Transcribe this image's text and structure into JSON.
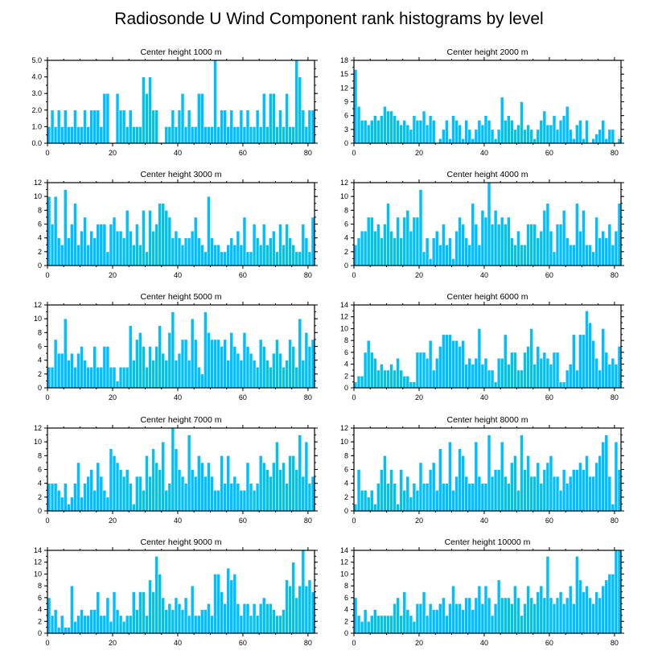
{
  "title": "Radiosonde U Wind Component rank histograms by level",
  "colors": {
    "bar": "#00bfff",
    "axis": "#000000",
    "background": "#ffffff"
  },
  "chart_data": [
    {
      "type": "bar",
      "title": "Center height 1000 m",
      "xlim": [
        0,
        82
      ],
      "ylim": [
        0,
        5
      ],
      "x_ticks": [
        "0",
        "20",
        "40",
        "60",
        "80"
      ],
      "y_ticks": [
        "0.0",
        "1.0",
        "2.0",
        "3.0",
        "4.0",
        "5.0"
      ],
      "values": [
        1,
        2,
        1,
        2,
        1,
        2,
        1,
        1,
        2,
        1,
        1,
        2,
        1,
        2,
        2,
        2,
        1,
        3,
        3,
        0,
        0,
        3,
        2,
        2,
        1,
        2,
        1,
        1,
        1,
        4,
        3,
        4,
        2,
        2,
        0,
        0,
        1,
        1,
        2,
        1,
        2,
        3,
        1,
        2,
        1,
        1,
        3,
        3,
        1,
        1,
        1,
        5,
        1,
        2,
        2,
        1,
        2,
        1,
        1,
        2,
        1,
        2,
        1,
        1,
        2,
        1,
        3,
        1,
        3,
        3,
        1,
        2,
        1,
        3,
        1,
        1,
        5,
        4,
        2,
        1,
        2,
        2
      ]
    },
    {
      "type": "bar",
      "title": "Center height 2000 m",
      "xlim": [
        0,
        82
      ],
      "ylim": [
        0,
        18
      ],
      "x_ticks": [
        "0",
        "20",
        "40",
        "60",
        "80"
      ],
      "y_ticks": [
        "0",
        "3",
        "6",
        "9",
        "12",
        "15",
        "18"
      ],
      "values": [
        16,
        8,
        5,
        5,
        4,
        5,
        6,
        5,
        6,
        8,
        7,
        7,
        6,
        5,
        4,
        5,
        4,
        3,
        6,
        5,
        5,
        7,
        4,
        6,
        5,
        0,
        1,
        3,
        5,
        1,
        6,
        5,
        4,
        1,
        5,
        3,
        1,
        3,
        5,
        4,
        6,
        5,
        3,
        1,
        3,
        10,
        5,
        6,
        5,
        3,
        4,
        9,
        3,
        4,
        3,
        1,
        3,
        5,
        7,
        4,
        4,
        6,
        3,
        5,
        6,
        8,
        3,
        1,
        4,
        5,
        1,
        5,
        0,
        1,
        2,
        3,
        5,
        1,
        3,
        3,
        0,
        1
      ]
    },
    {
      "type": "bar",
      "title": "Center height 3000 m",
      "xlim": [
        0,
        82
      ],
      "ylim": [
        0,
        12
      ],
      "x_ticks": [
        "0",
        "20",
        "40",
        "60",
        "80"
      ],
      "y_ticks": [
        "0",
        "2",
        "4",
        "6",
        "8",
        "10",
        "12"
      ],
      "values": [
        10,
        6,
        10,
        4,
        3,
        11,
        4,
        6,
        9,
        3,
        5,
        7,
        3,
        5,
        4,
        6,
        6,
        6,
        2,
        6,
        7,
        5,
        5,
        4,
        8,
        5,
        3,
        6,
        3,
        8,
        2,
        8,
        5,
        6,
        9,
        9,
        8,
        7,
        4,
        5,
        4,
        3,
        4,
        4,
        5,
        7,
        4,
        3,
        2,
        10,
        4,
        3,
        3,
        2,
        2,
        3,
        4,
        3,
        5,
        3,
        7,
        2,
        2,
        6,
        4,
        3,
        6,
        3,
        4,
        5,
        2,
        6,
        3,
        6,
        4,
        3,
        2,
        2,
        6,
        4,
        2,
        7
      ]
    },
    {
      "type": "bar",
      "title": "Center height 4000 m",
      "xlim": [
        0,
        82
      ],
      "ylim": [
        0,
        12
      ],
      "x_ticks": [
        "0",
        "20",
        "40",
        "60",
        "80"
      ],
      "y_ticks": [
        "0",
        "2",
        "4",
        "6",
        "8",
        "10",
        "12"
      ],
      "values": [
        3,
        4,
        5,
        5,
        7,
        7,
        5,
        6,
        4,
        6,
        9,
        5,
        4,
        7,
        4,
        7,
        8,
        5,
        7,
        7,
        11,
        2,
        4,
        1,
        4,
        5,
        3,
        6,
        3,
        4,
        1,
        5,
        7,
        6,
        4,
        3,
        9,
        6,
        3,
        8,
        7,
        12,
        6,
        8,
        6,
        7,
        6,
        7,
        4,
        3,
        5,
        3,
        3,
        6,
        6,
        6,
        4,
        5,
        8,
        9,
        5,
        2,
        6,
        6,
        8,
        4,
        3,
        3,
        9,
        5,
        8,
        3,
        3,
        2,
        7,
        4,
        5,
        4,
        6,
        3,
        5,
        9
      ]
    },
    {
      "type": "bar",
      "title": "Center height 5000 m",
      "xlim": [
        0,
        82
      ],
      "ylim": [
        0,
        12
      ],
      "x_ticks": [
        "0",
        "20",
        "40",
        "60",
        "80"
      ],
      "y_ticks": [
        "0",
        "2",
        "4",
        "6",
        "8",
        "10",
        "12"
      ],
      "values": [
        3,
        3,
        7,
        5,
        5,
        10,
        4,
        5,
        3,
        5,
        6,
        4,
        3,
        3,
        6,
        3,
        3,
        6,
        6,
        3,
        3,
        1,
        3,
        3,
        3,
        9,
        4,
        7,
        8,
        6,
        3,
        6,
        4,
        6,
        9,
        5,
        4,
        8,
        11,
        4,
        5,
        7,
        7,
        4,
        10,
        7,
        3,
        2,
        11,
        8,
        7,
        7,
        7,
        6,
        7,
        4,
        8,
        6,
        5,
        4,
        8,
        6,
        5,
        4,
        3,
        7,
        6,
        4,
        3,
        5,
        7,
        5,
        3,
        4,
        7,
        6,
        3,
        10,
        4,
        8,
        6,
        7
      ]
    },
    {
      "type": "bar",
      "title": "Center height 6000 m",
      "xlim": [
        0,
        82
      ],
      "ylim": [
        0,
        14
      ],
      "x_ticks": [
        "0",
        "20",
        "40",
        "60",
        "80"
      ],
      "y_ticks": [
        "0",
        "2",
        "4",
        "6",
        "8",
        "10",
        "12",
        "14"
      ],
      "values": [
        1,
        2,
        2,
        6,
        8,
        6,
        5,
        3,
        4,
        3,
        3,
        4,
        3,
        5,
        3,
        2,
        2,
        1,
        1,
        6,
        6,
        6,
        5,
        8,
        3,
        5,
        7,
        9,
        9,
        9,
        8,
        8,
        7,
        8,
        4,
        5,
        4,
        5,
        10,
        4,
        5,
        3,
        3,
        1,
        5,
        5,
        9,
        4,
        6,
        6,
        3,
        3,
        6,
        7,
        10,
        4,
        7,
        5,
        6,
        5,
        4,
        6,
        6,
        1,
        1,
        3,
        4,
        9,
        3,
        9,
        9,
        13,
        11,
        8,
        5,
        3,
        10,
        6,
        4,
        5,
        4,
        7
      ]
    },
    {
      "type": "bar",
      "title": "Center height 7000 m",
      "xlim": [
        0,
        82
      ],
      "ylim": [
        0,
        12
      ],
      "x_ticks": [
        "0",
        "20",
        "40",
        "60",
        "80"
      ],
      "y_ticks": [
        "0",
        "2",
        "4",
        "6",
        "8",
        "10",
        "12"
      ],
      "values": [
        4,
        4,
        4,
        3,
        2,
        4,
        1,
        2,
        4,
        7,
        2,
        4,
        5,
        6,
        3,
        7,
        5,
        3,
        2,
        9,
        8,
        7,
        6,
        5,
        6,
        4,
        1,
        5,
        5,
        3,
        8,
        5,
        9,
        7,
        6,
        10,
        3,
        4,
        12,
        9,
        6,
        5,
        4,
        11,
        6,
        5,
        8,
        7,
        5,
        7,
        5,
        3,
        3,
        8,
        4,
        8,
        4,
        5,
        4,
        3,
        3,
        7,
        4,
        3,
        4,
        8,
        7,
        6,
        5,
        7,
        10,
        6,
        7,
        4,
        8,
        8,
        6,
        11,
        5,
        10,
        4,
        5
      ]
    },
    {
      "type": "bar",
      "title": "Center height 8000 m",
      "xlim": [
        0,
        82
      ],
      "ylim": [
        0,
        12
      ],
      "x_ticks": [
        "0",
        "20",
        "40",
        "60",
        "80"
      ],
      "y_ticks": [
        "0",
        "2",
        "4",
        "6",
        "8",
        "10",
        "12"
      ],
      "values": [
        1,
        6,
        3,
        3,
        2,
        3,
        1,
        4,
        6,
        8,
        4,
        6,
        4,
        1,
        6,
        3,
        5,
        2,
        4,
        3,
        7,
        4,
        4,
        6,
        7,
        3,
        9,
        4,
        4,
        10,
        3,
        5,
        9,
        8,
        5,
        4,
        4,
        10,
        5,
        4,
        4,
        11,
        5,
        6,
        6,
        10,
        5,
        4,
        7,
        8,
        3,
        11,
        6,
        8,
        5,
        5,
        7,
        4,
        6,
        7,
        8,
        5,
        5,
        3,
        6,
        4,
        5,
        6,
        6,
        7,
        6,
        8,
        5,
        5,
        7,
        8,
        10,
        11,
        5,
        1,
        10,
        6
      ]
    },
    {
      "type": "bar",
      "title": "Center height 9000 m",
      "xlim": [
        0,
        82
      ],
      "ylim": [
        0,
        14
      ],
      "x_ticks": [
        "0",
        "20",
        "40",
        "60",
        "80"
      ],
      "y_ticks": [
        "0",
        "2",
        "4",
        "6",
        "8",
        "10",
        "12",
        "14"
      ],
      "values": [
        6,
        3,
        4,
        1,
        3,
        1,
        1,
        8,
        2,
        3,
        4,
        3,
        3,
        4,
        4,
        7,
        3,
        3,
        6,
        2,
        7,
        4,
        3,
        2,
        3,
        3,
        7,
        4,
        7,
        7,
        3,
        9,
        7,
        13,
        10,
        6,
        4,
        5,
        4,
        6,
        5,
        4,
        6,
        3,
        8,
        3,
        3,
        4,
        4,
        5,
        3,
        10,
        10,
        7,
        5,
        11,
        9,
        10,
        5,
        3,
        5,
        5,
        3,
        5,
        3,
        5,
        6,
        5,
        5,
        4,
        3,
        3,
        4,
        9,
        8,
        12,
        6,
        8,
        14,
        8,
        9,
        7
      ]
    },
    {
      "type": "bar",
      "title": "Center height 10000 m",
      "xlim": [
        0,
        82
      ],
      "ylim": [
        0,
        14
      ],
      "x_ticks": [
        "0",
        "20",
        "40",
        "60",
        "80"
      ],
      "y_ticks": [
        "0",
        "2",
        "4",
        "6",
        "8",
        "10",
        "12",
        "14"
      ],
      "values": [
        6,
        3,
        2,
        4,
        2,
        3,
        4,
        3,
        3,
        3,
        3,
        3,
        5,
        6,
        3,
        7,
        4,
        3,
        2,
        5,
        5,
        7,
        3,
        5,
        4,
        4,
        5,
        6,
        3,
        5,
        8,
        5,
        5,
        4,
        6,
        6,
        4,
        6,
        8,
        5,
        8,
        6,
        3,
        5,
        9,
        6,
        6,
        6,
        5,
        8,
        6,
        3,
        5,
        8,
        6,
        5,
        7,
        8,
        6,
        13,
        6,
        5,
        6,
        7,
        5,
        6,
        8,
        5,
        13,
        9,
        7,
        8,
        6,
        5,
        7,
        6,
        8,
        9,
        10,
        10,
        14,
        14
      ]
    }
  ]
}
